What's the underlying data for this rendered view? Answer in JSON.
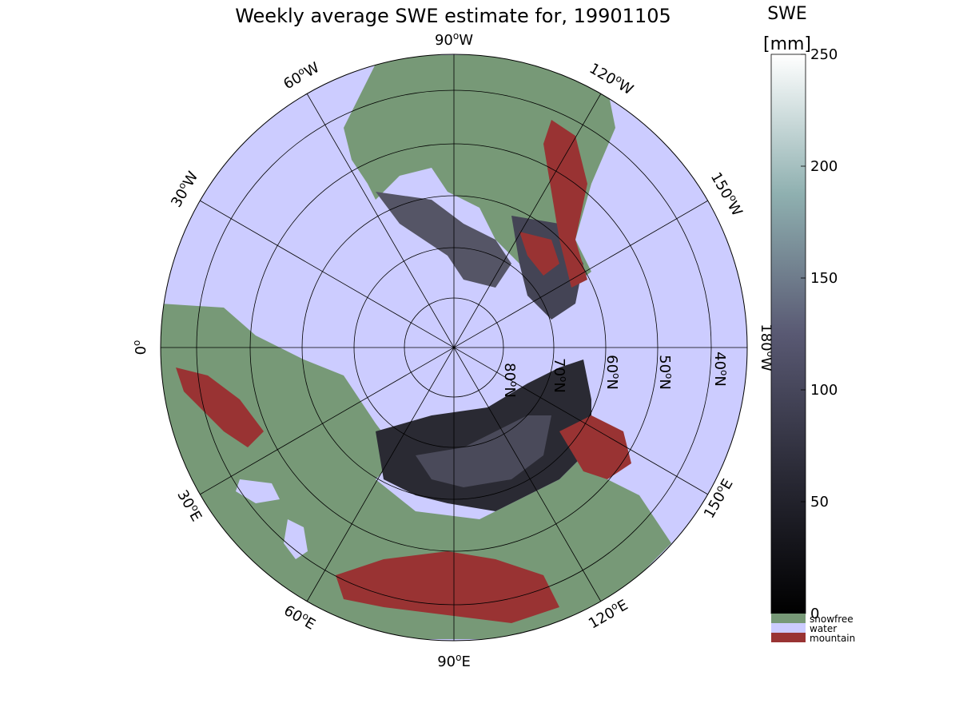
{
  "figure": {
    "title": "Weekly average SWE estimate for, 19901105"
  },
  "map": {
    "projection": "north polar stereographic",
    "ocean_color": "#ccccff",
    "snowfree_color": "#779977",
    "mountain_color": "#993333",
    "longitude_labels": [
      {
        "text": "90°W",
        "base": "90",
        "suffix": "W"
      },
      {
        "text": "120°W",
        "base": "120",
        "suffix": "W"
      },
      {
        "text": "150°W",
        "base": "150",
        "suffix": "W"
      },
      {
        "text": "180°W",
        "base": "180",
        "suffix": "W"
      },
      {
        "text": "150°E",
        "base": "150",
        "suffix": "E"
      },
      {
        "text": "120°E",
        "base": "120",
        "suffix": "E"
      },
      {
        "text": "90°E",
        "base": "90",
        "suffix": "E"
      },
      {
        "text": "60°E",
        "base": "60",
        "suffix": "E"
      },
      {
        "text": "30°E",
        "base": "30",
        "suffix": "E"
      },
      {
        "text": "0°",
        "base": "0",
        "suffix": ""
      },
      {
        "text": "30°W",
        "base": "30",
        "suffix": "W"
      },
      {
        "text": "60°W",
        "base": "60",
        "suffix": "W"
      }
    ],
    "latitude_labels": [
      {
        "text": "80°N",
        "base": "80",
        "suffix": "N"
      },
      {
        "text": "70°N",
        "base": "70",
        "suffix": "N"
      },
      {
        "text": "60°N",
        "base": "60",
        "suffix": "N"
      },
      {
        "text": "50°N",
        "base": "50",
        "suffix": "N"
      },
      {
        "text": "40°N",
        "base": "40",
        "suffix": "N"
      }
    ]
  },
  "colorbar": {
    "variable": "SWE",
    "unit": "[mm]",
    "ticks": [
      "0",
      "50",
      "100",
      "150",
      "200",
      "250"
    ],
    "range": [
      0,
      250
    ],
    "colors": {
      "low": "#000000",
      "mid": "#595973",
      "upper": "#8fb0b0",
      "high": "#ffffff"
    },
    "categories": [
      {
        "label": "snowfree",
        "color": "#779977"
      },
      {
        "label": "water",
        "color": "#ccccff"
      },
      {
        "label": "mountain",
        "color": "#993333"
      }
    ]
  }
}
